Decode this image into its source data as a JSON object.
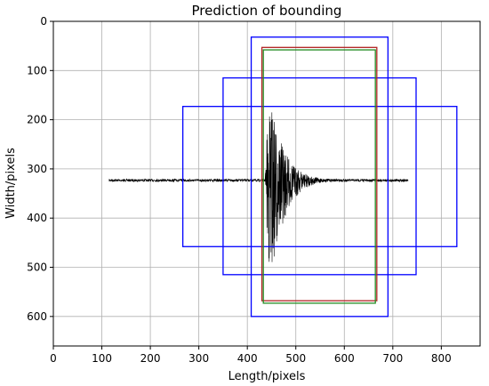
{
  "chart_data": {
    "type": "line",
    "title": "Prediction of bounding",
    "xlabel": "Length/pixels",
    "ylabel": "Width/pixels",
    "xlim": [
      0,
      880
    ],
    "ylim": [
      0,
      660
    ],
    "y_inverted": true,
    "grid": true,
    "x_ticks": [
      0,
      100,
      200,
      300,
      400,
      500,
      600,
      700,
      800
    ],
    "y_ticks": [
      0,
      100,
      200,
      300,
      400,
      500,
      600
    ],
    "signal": {
      "color": "#000000",
      "x_start": 115,
      "x_end": 732,
      "baseline_y": 323,
      "noise_amplitude": 3,
      "onset_x": 440,
      "peak_upper_y": 155,
      "peak_lower_y": 545,
      "decay_tail_amplitude": 8
    },
    "boxes": [
      {
        "color": "#0000ff",
        "x0": 408,
        "y0": 32,
        "x1": 690,
        "y1": 600
      },
      {
        "color": "#0000ff",
        "x0": 350,
        "y0": 115,
        "x1": 748,
        "y1": 515
      },
      {
        "color": "#0000ff",
        "x0": 267,
        "y0": 173,
        "x1": 832,
        "y1": 458
      },
      {
        "color": "#b22222",
        "x0": 430,
        "y0": 53,
        "x1": 667,
        "y1": 568
      },
      {
        "color": "#228b22",
        "x0": 433,
        "y0": 58,
        "x1": 664,
        "y1": 573
      }
    ]
  }
}
